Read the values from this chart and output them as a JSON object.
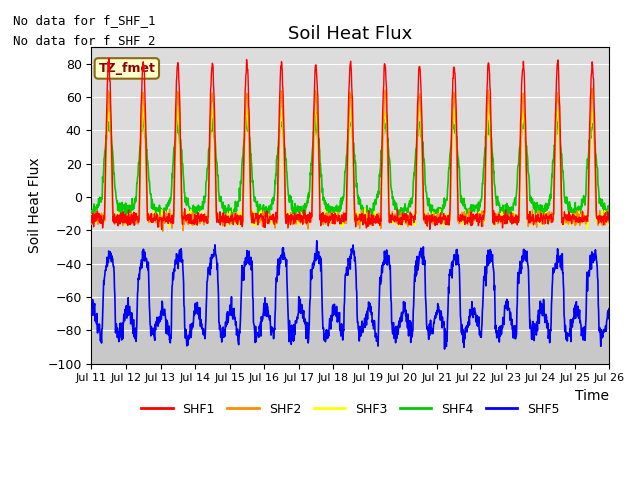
{
  "title": "Soil Heat Flux",
  "ylabel": "Soil Heat Flux",
  "xlabel": "Time",
  "ylim": [
    -100,
    90
  ],
  "yticks": [
    -100,
    -80,
    -60,
    -40,
    -20,
    0,
    20,
    40,
    60,
    80
  ],
  "xtick_labels": [
    "Jul 11",
    "Jul 12",
    "Jul 13",
    "Jul 14",
    "Jul 15",
    "Jul 16",
    "Jul 17",
    "Jul 18",
    "Jul 19",
    "Jul 20",
    "Jul 21",
    "Jul 22",
    "Jul 23",
    "Jul 24",
    "Jul 25",
    "Jul 26"
  ],
  "colors": {
    "SHF1": "#ff0000",
    "SHF2": "#ff8c00",
    "SHF3": "#ffff00",
    "SHF4": "#00cc00",
    "SHF5": "#0000ff"
  },
  "annotation1": "No data for f_SHF_1",
  "annotation2": "No data for f_SHF_2",
  "tz_label": "TZ_fmet",
  "background_color": "#ffffff",
  "upper_bg": "#dcdcdc",
  "lower_bg": "#c8c8c8",
  "grid_color": "#ebebeb",
  "title_fontsize": 13,
  "label_fontsize": 10,
  "annot_fontsize": 9
}
